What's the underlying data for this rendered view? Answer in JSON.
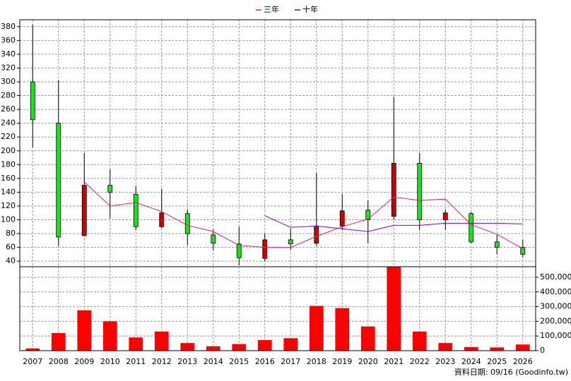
{
  "chart_data": [
    {
      "type": "candlestick",
      "categories": [
        "2007",
        "2008",
        "2009",
        "2010",
        "2011",
        "2012",
        "2013",
        "2014",
        "2015",
        "2016",
        "2017",
        "2018",
        "2019",
        "2020",
        "2021",
        "2022",
        "2023",
        "2024",
        "2025",
        "2026"
      ],
      "open": [
        300,
        240,
        77,
        150,
        137,
        90,
        109,
        78,
        65,
        44,
        71,
        66,
        91,
        114,
        105,
        182,
        100,
        109,
        68,
        60
      ],
      "high": [
        383,
        302,
        197,
        173,
        149,
        145,
        115,
        86,
        90,
        80,
        87,
        168,
        137,
        128,
        278,
        197,
        115,
        111,
        78,
        71
      ],
      "low": [
        205,
        62,
        77,
        102,
        85,
        88,
        63,
        56,
        34,
        40,
        57,
        62,
        85,
        66,
        100,
        85,
        85,
        66,
        50,
        46
      ],
      "close": [
        245,
        75,
        150,
        140,
        90,
        110,
        80,
        66,
        45,
        71,
        65,
        91,
        113,
        100,
        182,
        100,
        110,
        68,
        60,
        50
      ],
      "up_color": "#cc0000",
      "down_color": "#22dd22",
      "series": [
        {
          "name": "三年",
          "color": "#e0245e",
          "values": [
            null,
            null,
            155,
            120,
            125,
            112,
            92,
            83,
            63,
            60,
            60,
            76,
            90,
            101,
            133,
            128,
            130,
            93,
            79,
            58
          ]
        },
        {
          "name": "十年",
          "color": "#8000c0",
          "values": [
            null,
            null,
            null,
            null,
            null,
            null,
            null,
            null,
            null,
            106,
            89,
            91,
            87,
            83,
            92,
            92,
            95,
            95,
            95,
            94
          ]
        }
      ],
      "ylim": [
        32,
        390
      ],
      "yticks": [
        40,
        60,
        80,
        100,
        120,
        140,
        160,
        180,
        200,
        220,
        240,
        260,
        280,
        300,
        320,
        340,
        360,
        380
      ],
      "grid": true
    },
    {
      "type": "bar",
      "values": [
        15000,
        120000,
        275000,
        200000,
        90000,
        130000,
        52000,
        30000,
        45000,
        72000,
        85000,
        305000,
        290000,
        165000,
        570000,
        130000,
        52000,
        25000,
        22000,
        42000
      ],
      "color": "#ff0000",
      "ylim": [
        0,
        572000
      ],
      "yticks": [
        0,
        {
          "value": 100000,
          "label": "100,000"
        },
        {
          "value": 200000,
          "label": "200,000"
        },
        {
          "value": 300000,
          "label": "300,000"
        },
        {
          "value": 400000,
          "label": "400,000"
        },
        {
          "value": 500000,
          "label": "500,000"
        }
      ],
      "grid": true
    }
  ],
  "footer": "資料日期: 09/16 (Goodinfo.tw)"
}
